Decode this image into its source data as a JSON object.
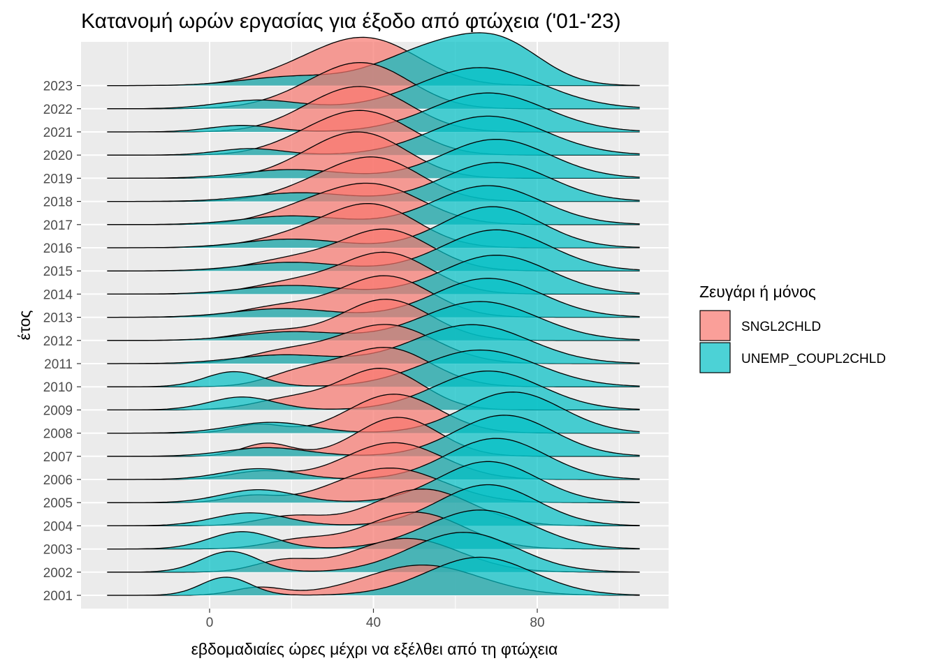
{
  "chart_data": {
    "type": "ridgeline",
    "title": "Κατανομή ωρών εργασίας για έξοδο από φτώχεια ('01-'23)",
    "xlabel": "εβδομαδιαίες ώρες μέχρι να εξέλθει από τη φτώχεια",
    "ylabel": "έτος",
    "xlim": [
      -25,
      105
    ],
    "x_ticks": [
      0,
      40,
      80
    ],
    "y_categories": [
      "2001",
      "2002",
      "2003",
      "2004",
      "2005",
      "2006",
      "2007",
      "2008",
      "2009",
      "2010",
      "2011",
      "2012",
      "2013",
      "2014",
      "2015",
      "2016",
      "2017",
      "2018",
      "2019",
      "2020",
      "2021",
      "2022",
      "2023"
    ],
    "legend": {
      "title": "Ζευγάρι ή μόνος",
      "position": "right",
      "entries": [
        "SNGL2CHLD",
        "UNEMP_COUPL2CHLD"
      ]
    },
    "colors": {
      "SNGL2CHLD": "#F8766D",
      "UNEMP_COUPL2CHLD": "#00BFC4",
      "panel": "#EBEBEB",
      "grid": "#FFFFFF"
    },
    "fill_alpha": 0.7,
    "series": [
      {
        "name": "SNGL2CHLD",
        "peaks_per_year": [
          [
            [
              12,
              6,
              0.18
            ],
            [
              52,
              14,
              0.7
            ]
          ],
          [
            [
              18,
              7,
              0.25
            ],
            [
              48,
              13,
              0.78
            ]
          ],
          [
            [
              22,
              8,
              0.2
            ],
            [
              50,
              12,
              0.85
            ]
          ],
          [
            [
              20,
              8,
              0.22
            ],
            [
              52,
              12,
              0.85
            ]
          ],
          [
            [
              10,
              6,
              0.15
            ],
            [
              44,
              13,
              0.8
            ]
          ],
          [
            [
              12,
              7,
              0.18
            ],
            [
              45,
              12,
              0.85
            ]
          ],
          [
            [
              14,
              6,
              0.3
            ],
            [
              46,
              10,
              0.9
            ]
          ],
          [
            [
              12,
              6,
              0.2
            ],
            [
              45,
              11,
              0.9
            ]
          ],
          [
            [
              20,
              9,
              0.25
            ],
            [
              42,
              10,
              0.95
            ]
          ],
          [
            [
              22,
              8,
              0.3
            ],
            [
              43,
              11,
              0.9
            ]
          ],
          [
            [
              18,
              9,
              0.25
            ],
            [
              43,
              12,
              0.9
            ]
          ],
          [
            [
              15,
              9,
              0.2
            ],
            [
              43,
              11,
              0.95
            ]
          ],
          [
            [
              18,
              10,
              0.25
            ],
            [
              43,
              11,
              0.95
            ]
          ],
          [
            [
              20,
              10,
              0.25
            ],
            [
              43,
              11,
              0.95
            ]
          ],
          [
            [
              20,
              10,
              0.25
            ],
            [
              43,
              11,
              0.95
            ]
          ],
          [
            [
              22,
              11,
              0.25
            ],
            [
              40,
              11,
              0.95
            ]
          ],
          [
            [
              22,
              10,
              0.25
            ],
            [
              40,
              12,
              0.9
            ]
          ],
          [
            [
              25,
              10,
              0.25
            ],
            [
              41,
              11,
              0.95
            ]
          ],
          [
            [
              25,
              10,
              0.25
            ],
            [
              38,
              11,
              0.95
            ]
          ],
          [
            [
              25,
              10,
              0.3
            ],
            [
              39,
              11,
              0.9
            ]
          ],
          [
            [
              26,
              10,
              0.3
            ],
            [
              39,
              11,
              0.9
            ]
          ],
          [
            [
              26,
              11,
              0.3
            ],
            [
              39,
              11,
              0.9
            ]
          ],
          [
            [
              24,
              12,
              0.35
            ],
            [
              40,
              12,
              0.95
            ]
          ]
        ]
      },
      {
        "name": "UNEMP_COUPL2CHLD",
        "peaks_per_year": [
          [
            [
              4,
              6,
              0.42
            ],
            [
              66,
              13,
              0.88
            ]
          ],
          [
            [
              5,
              7,
              0.48
            ],
            [
              62,
              13,
              0.92
            ]
          ],
          [
            [
              8,
              8,
              0.4
            ],
            [
              66,
              13,
              0.9
            ]
          ],
          [
            [
              10,
              9,
              0.3
            ],
            [
              68,
              12,
              0.95
            ]
          ],
          [
            [
              12,
              9,
              0.3
            ],
            [
              68,
              12,
              0.95
            ]
          ],
          [
            [
              12,
              9,
              0.25
            ],
            [
              70,
              12,
              0.95
            ]
          ],
          [
            [
              14,
              10,
              0.2
            ],
            [
              72,
              12,
              0.95
            ]
          ],
          [
            [
              15,
              10,
              0.25
            ],
            [
              74,
              12,
              0.95
            ]
          ],
          [
            [
              8,
              8,
              0.3
            ],
            [
              68,
              13,
              0.9
            ]
          ],
          [
            [
              6,
              7,
              0.35
            ],
            [
              66,
              14,
              0.85
            ]
          ],
          [
            [
              18,
              12,
              0.2
            ],
            [
              64,
              14,
              0.9
            ]
          ],
          [
            [
              20,
              12,
              0.2
            ],
            [
              66,
              14,
              0.9
            ]
          ],
          [
            [
              18,
              12,
              0.2
            ],
            [
              68,
              13,
              0.9
            ]
          ],
          [
            [
              20,
              12,
              0.2
            ],
            [
              70,
              13,
              0.9
            ]
          ],
          [
            [
              20,
              12,
              0.2
            ],
            [
              70,
              13,
              0.95
            ]
          ],
          [
            [
              20,
              12,
              0.2
            ],
            [
              69,
              12,
              0.95
            ]
          ],
          [
            [
              20,
              12,
              0.2
            ],
            [
              68,
              13,
              0.9
            ]
          ],
          [
            [
              22,
              12,
              0.2
            ],
            [
              70,
              13,
              0.9
            ]
          ],
          [
            [
              20,
              12,
              0.2
            ],
            [
              70,
              13,
              0.9
            ]
          ],
          [
            [
              10,
              8,
              0.15
            ],
            [
              68,
              14,
              0.9
            ]
          ],
          [
            [
              8,
              8,
              0.15
            ],
            [
              68,
              14,
              0.9
            ]
          ],
          [
            [
              12,
              10,
              0.2
            ],
            [
              66,
              15,
              0.95
            ]
          ],
          [
            [
              20,
              12,
              0.2
            ],
            [
              55,
              13,
              0.85
            ],
            [
              72,
              10,
              0.75
            ]
          ]
        ]
      }
    ]
  }
}
